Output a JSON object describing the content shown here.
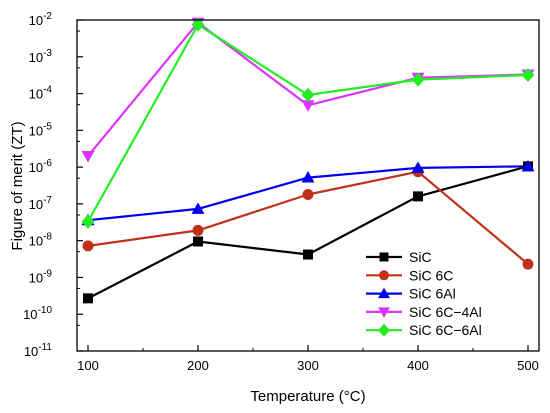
{
  "chart_data": {
    "type": "line",
    "xlabel": "Temperature (°C)",
    "ylabel": "Figure of merit (ZT)",
    "yscale": "log",
    "xlim": [
      90,
      510
    ],
    "ylim_exp": [
      -11,
      -2
    ],
    "x": [
      100,
      200,
      300,
      400,
      500
    ],
    "xticks": [
      100,
      200,
      300,
      400,
      500
    ],
    "xtick_labels": [
      "100",
      "200",
      "300",
      "400",
      "500"
    ],
    "ytick_labels": [
      {
        "exp": -11,
        "base": "10",
        "sup": "-11"
      },
      {
        "exp": -10,
        "base": "10",
        "sup": "-10"
      },
      {
        "exp": -9,
        "base": "10",
        "sup": "-9"
      },
      {
        "exp": -8,
        "base": "10",
        "sup": "-8"
      },
      {
        "exp": -7,
        "base": "10",
        "sup": "-7"
      },
      {
        "exp": -6,
        "base": "10",
        "sup": "-6"
      },
      {
        "exp": -5,
        "base": "10",
        "sup": "-5"
      },
      {
        "exp": -4,
        "base": "10",
        "sup": "-4"
      },
      {
        "exp": -3,
        "base": "10",
        "sup": "-3"
      },
      {
        "exp": -2,
        "base": "10",
        "sup": "-2"
      }
    ],
    "grid": false,
    "legend_position": "bottom-right",
    "series": [
      {
        "name": "SiC",
        "color": "#000000",
        "marker": "square",
        "values": [
          2.7e-10,
          9.5e-09,
          4.2e-09,
          1.6e-07,
          1.05e-06
        ]
      },
      {
        "name": "SiC 6C",
        "color": "#c0301a",
        "marker": "circle",
        "values": [
          7.2e-09,
          1.9e-08,
          1.8e-07,
          7.5e-07,
          2.3e-09
        ]
      },
      {
        "name": "SiC 6Al",
        "color": "#0000ee",
        "marker": "triangle-up",
        "values": [
          3.6e-08,
          7.3e-08,
          5.2e-07,
          9.5e-07,
          1.05e-06
        ]
      },
      {
        "name": "SiC 6C−4Al",
        "color": "#dd33ff",
        "marker": "triangle-down",
        "values": [
          2e-06,
          0.0085,
          4.8e-05,
          0.00027,
          0.00033
        ]
      },
      {
        "name": "SiC 6C−6Al",
        "color": "#22ee22",
        "marker": "diamond",
        "values": [
          3.3e-08,
          0.0075,
          9.2e-05,
          0.00024,
          0.00032
        ]
      }
    ]
  }
}
